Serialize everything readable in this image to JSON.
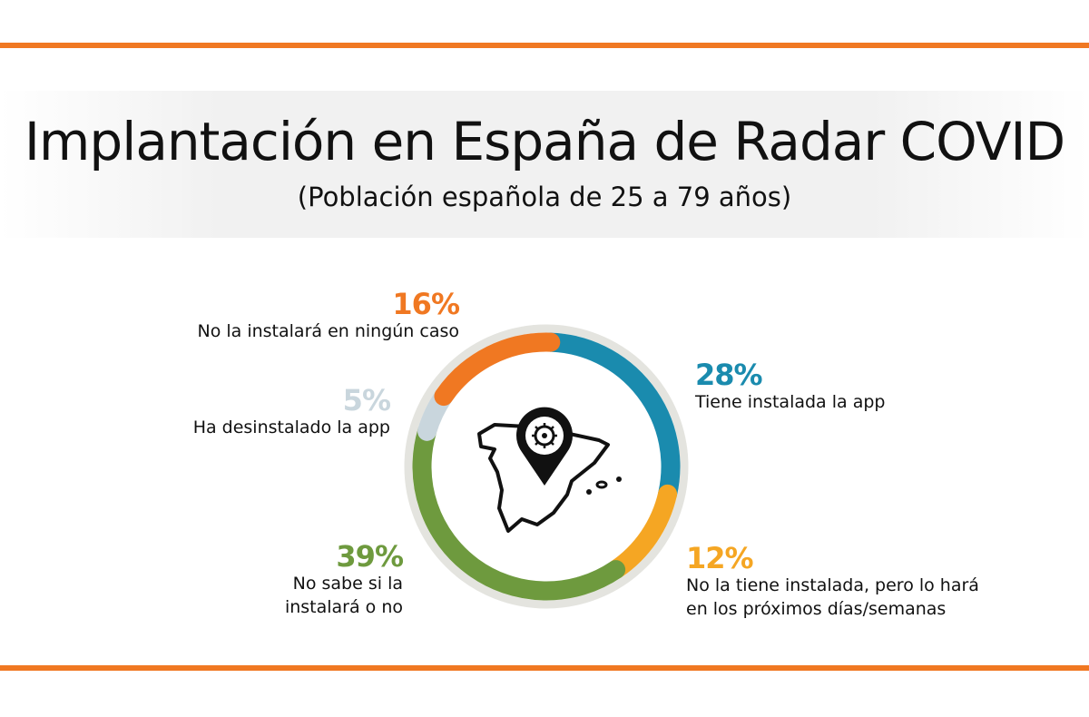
{
  "title": "Implantación en España de Radar COVID",
  "subtitle": "(Población española de 25 a 79 años)",
  "chart_data": {
    "type": "pie",
    "variant": "donut",
    "title": "Implantación en España de Radar COVID",
    "subtitle": "(Población española de 25 a 79 años)",
    "slices": [
      {
        "label": "Tiene instalada la app",
        "value": 28,
        "display": "28%",
        "color": "#1A8BAE"
      },
      {
        "label": "No la tiene instalada, pero lo hará en los próximos días/semanas",
        "value": 12,
        "display": "12%",
        "color": "#F5A623"
      },
      {
        "label": "No sabe si la instalará o no",
        "value": 39,
        "display": "39%",
        "color": "#6E9A3E"
      },
      {
        "label": "Ha desinstalado la app",
        "value": 5,
        "display": "5%",
        "color": "#C9D6DD"
      },
      {
        "label": "No la instalará en ningún caso",
        "value": 16,
        "display": "16%",
        "color": "#F07822"
      }
    ],
    "center_icon": "spain-map-with-virus-pin-icon"
  },
  "colors": {
    "accent": "#F07822"
  }
}
